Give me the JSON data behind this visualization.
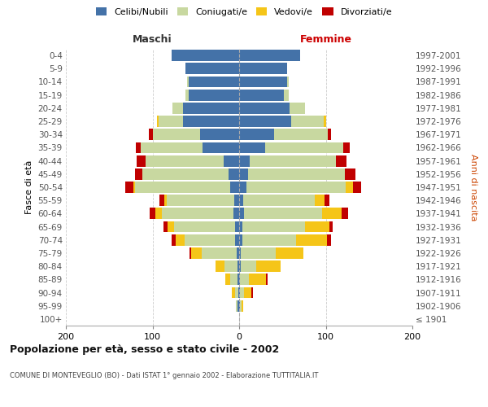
{
  "age_groups": [
    "100+",
    "95-99",
    "90-94",
    "85-89",
    "80-84",
    "75-79",
    "70-74",
    "65-69",
    "60-64",
    "55-59",
    "50-54",
    "45-49",
    "40-44",
    "35-39",
    "30-34",
    "25-29",
    "20-24",
    "15-19",
    "10-14",
    "5-9",
    "0-4"
  ],
  "birth_years": [
    "≤ 1901",
    "1902-1906",
    "1907-1911",
    "1912-1916",
    "1917-1921",
    "1922-1926",
    "1927-1931",
    "1932-1936",
    "1937-1941",
    "1942-1946",
    "1947-1951",
    "1952-1956",
    "1957-1961",
    "1962-1966",
    "1967-1971",
    "1972-1976",
    "1977-1981",
    "1982-1986",
    "1987-1991",
    "1992-1996",
    "1997-2001"
  ],
  "males": {
    "celibi": [
      0,
      2,
      1,
      2,
      2,
      3,
      5,
      5,
      7,
      6,
      10,
      12,
      18,
      42,
      45,
      65,
      65,
      58,
      58,
      62,
      78
    ],
    "coniugati": [
      0,
      2,
      4,
      8,
      15,
      40,
      58,
      70,
      82,
      78,
      110,
      100,
      90,
      72,
      55,
      28,
      12,
      4,
      2,
      0,
      0
    ],
    "vedovi": [
      0,
      0,
      3,
      6,
      10,
      12,
      10,
      8,
      8,
      2,
      2,
      0,
      0,
      0,
      0,
      2,
      0,
      0,
      0,
      0,
      0
    ],
    "divorziati": [
      0,
      0,
      0,
      0,
      0,
      2,
      5,
      4,
      6,
      6,
      9,
      8,
      10,
      5,
      4,
      0,
      0,
      0,
      0,
      0,
      0
    ]
  },
  "females": {
    "nubili": [
      0,
      1,
      1,
      1,
      2,
      2,
      4,
      4,
      6,
      5,
      8,
      10,
      12,
      30,
      40,
      60,
      58,
      52,
      55,
      55,
      70
    ],
    "coniugate": [
      0,
      2,
      5,
      10,
      18,
      40,
      62,
      72,
      90,
      82,
      115,
      112,
      100,
      90,
      62,
      38,
      18,
      5,
      2,
      0,
      0
    ],
    "vedove": [
      0,
      2,
      8,
      20,
      28,
      32,
      35,
      28,
      22,
      12,
      8,
      0,
      0,
      0,
      0,
      2,
      0,
      0,
      0,
      0,
      0
    ],
    "divorziate": [
      0,
      0,
      2,
      2,
      0,
      0,
      5,
      4,
      8,
      5,
      10,
      12,
      12,
      8,
      4,
      0,
      0,
      0,
      0,
      0,
      0
    ]
  },
  "colors": {
    "celibi_nubili": "#4472a8",
    "coniugati_e": "#c8d8a0",
    "vedovi_e": "#f5c518",
    "divorziati_e": "#c00000"
  },
  "xlim": 200,
  "title": "Popolazione per età, sesso e stato civile - 2002",
  "subtitle": "COMUNE DI MONTEVEGLIO (BO) - Dati ISTAT 1° gennaio 2002 - Elaborazione TUTTITALIA.IT",
  "ylabel_left": "Fasce di età",
  "ylabel_right": "Anni di nascita",
  "xlabel_left": "Maschi",
  "xlabel_right": "Femmine",
  "background_color": "#ffffff",
  "grid_color": "#cccccc"
}
